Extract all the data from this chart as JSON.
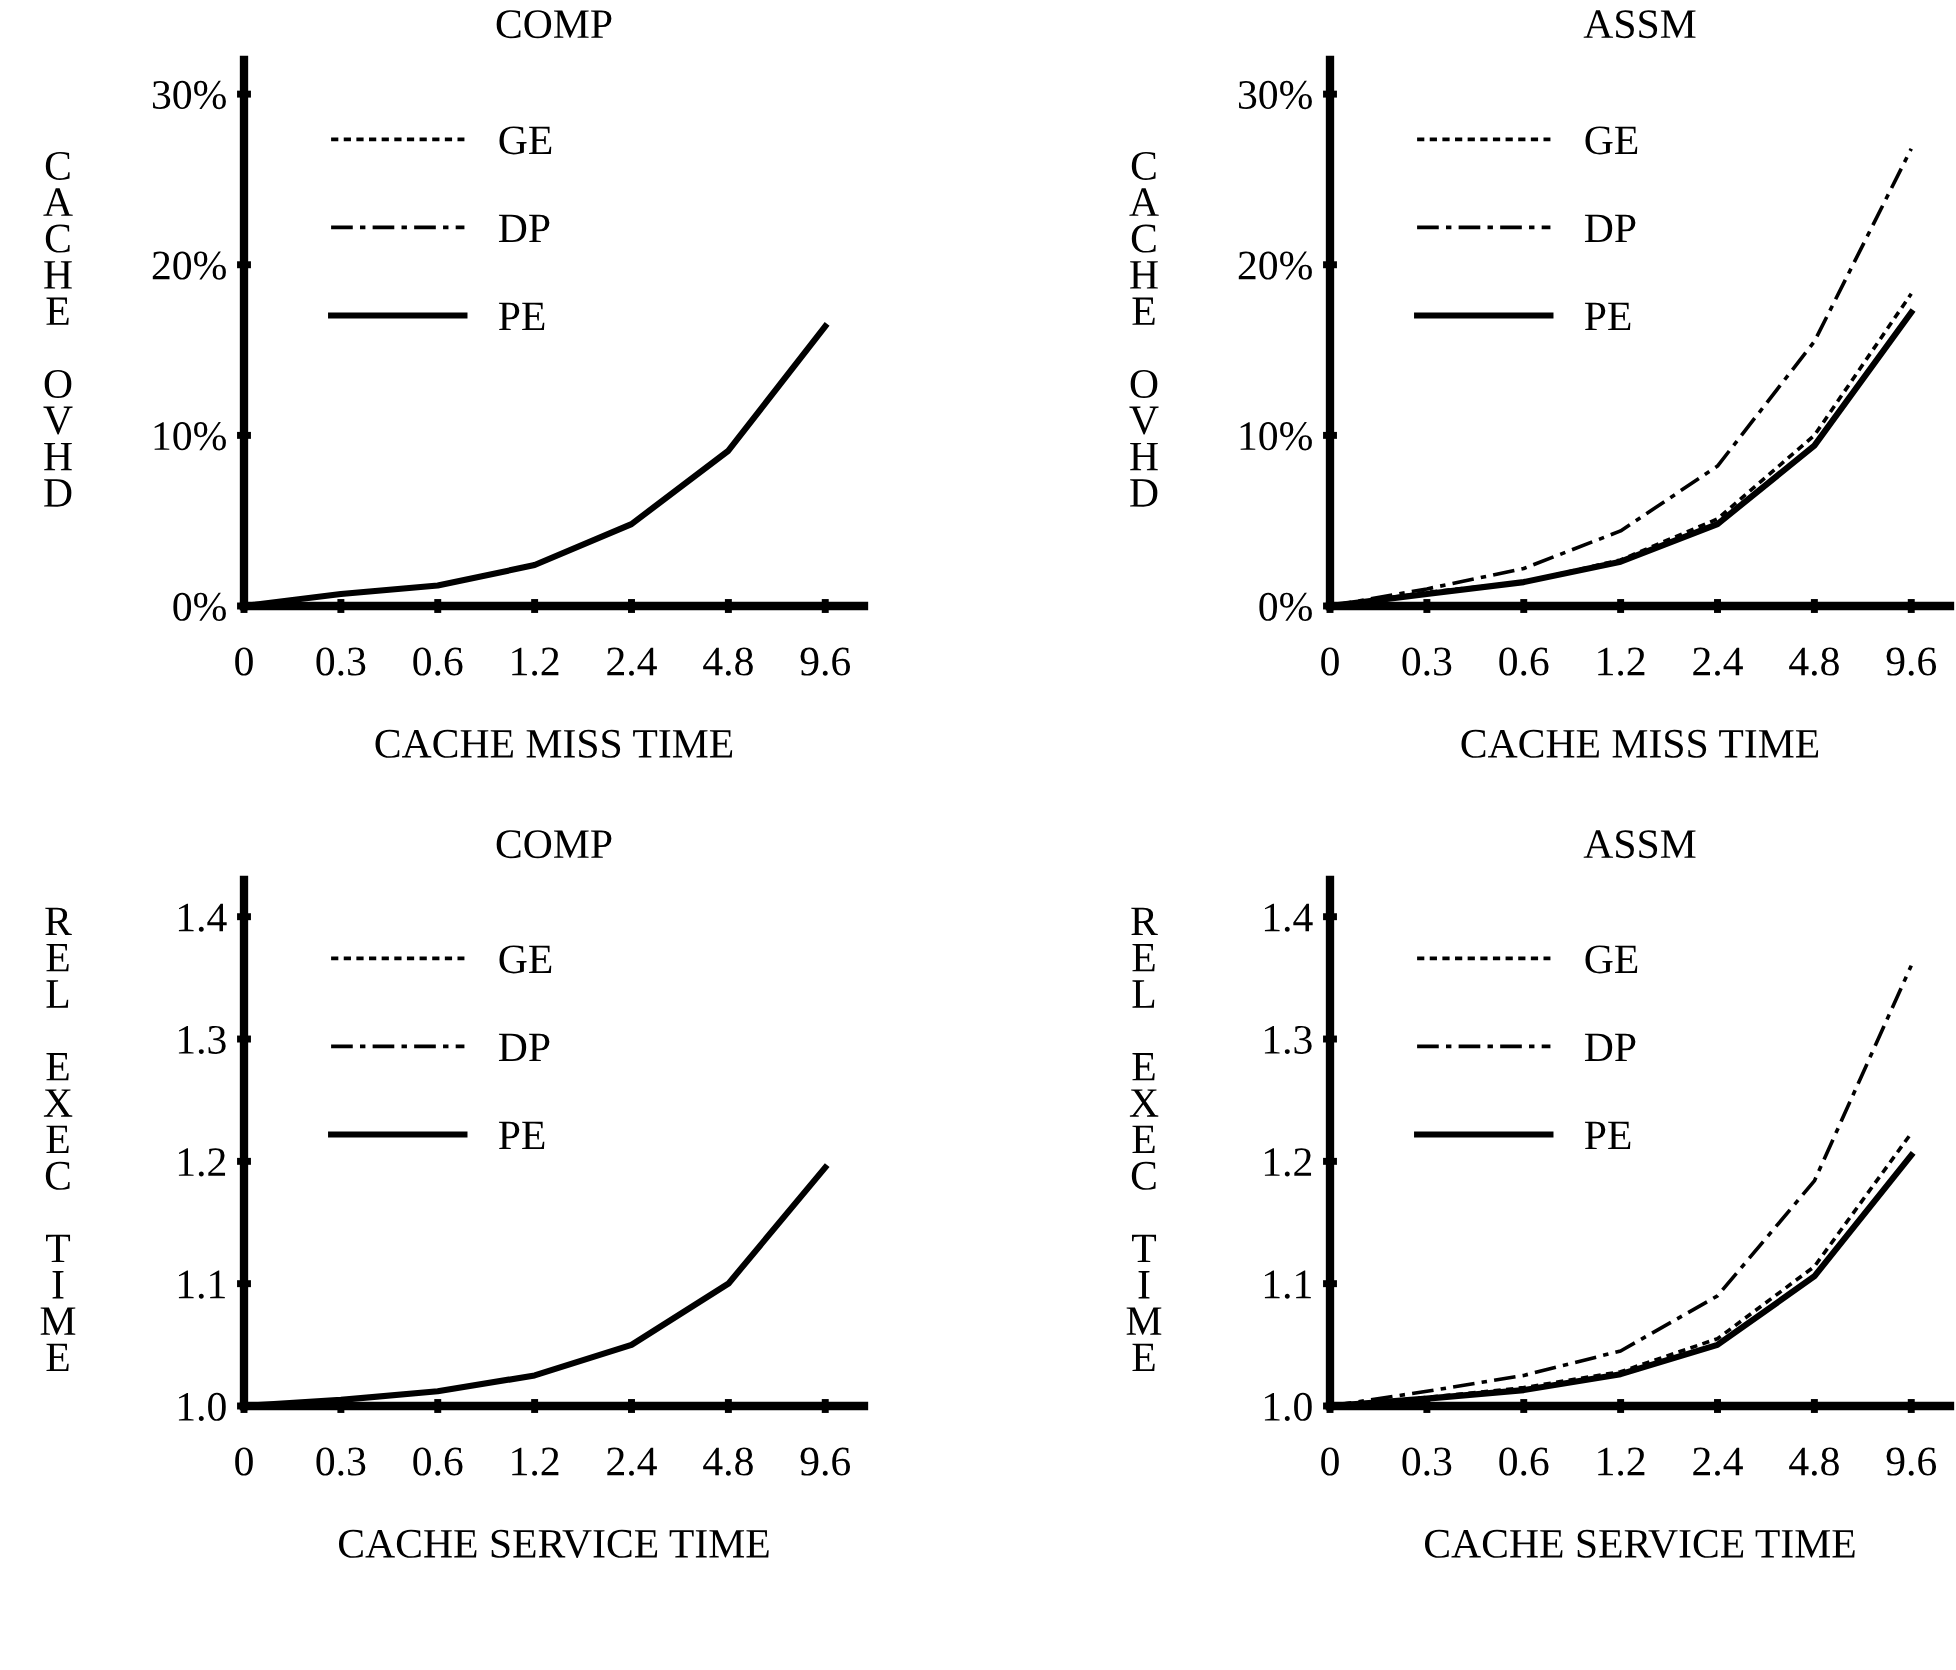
{
  "chart_data": [
    {
      "type": "line",
      "title": "COMP",
      "xlabel": "CACHE MISS TIME",
      "ylabel": "CACHE OVHD",
      "categories": [
        "0",
        "0.3",
        "0.6",
        "1.2",
        "2.4",
        "4.8",
        "9.6"
      ],
      "ylim": [
        0,
        32
      ],
      "yticks": [
        {
          "value": 0,
          "label": "0%"
        },
        {
          "value": 10,
          "label": "10%"
        },
        {
          "value": 20,
          "label": "20%"
        },
        {
          "value": 30,
          "label": "30%"
        }
      ],
      "grid": false,
      "legend": "top left",
      "series": [
        {
          "name": "GE",
          "color": "#000000",
          "line_style": "dotted",
          "values": [
            null,
            null,
            null,
            null,
            null,
            null,
            null
          ]
        },
        {
          "name": "DP",
          "color": "#000000",
          "line_style": "dashdot",
          "values": [
            null,
            null,
            null,
            null,
            null,
            null,
            null
          ]
        },
        {
          "name": "PE",
          "color": "#000000",
          "line_style": "solid",
          "values": [
            0,
            0.7,
            1.2,
            2.4,
            4.8,
            9.1,
            16.4
          ]
        }
      ]
    },
    {
      "type": "line",
      "title": "ASSM",
      "xlabel": "CACHE MISS TIME",
      "ylabel": "CACHE OVHD",
      "categories": [
        "0",
        "0.3",
        "0.6",
        "1.2",
        "2.4",
        "4.8",
        "9.6"
      ],
      "ylim": [
        0,
        32
      ],
      "yticks": [
        {
          "value": 0,
          "label": "0%"
        },
        {
          "value": 10,
          "label": "10%"
        },
        {
          "value": 20,
          "label": "20%"
        },
        {
          "value": 30,
          "label": "30%"
        }
      ],
      "grid": false,
      "legend": "top left",
      "series": [
        {
          "name": "GE",
          "color": "#000000",
          "line_style": "dotted",
          "values": [
            0,
            0.8,
            1.4,
            2.7,
            5.1,
            10.0,
            18.3
          ]
        },
        {
          "name": "DP",
          "color": "#000000",
          "line_style": "dashdot",
          "values": [
            0,
            1.0,
            2.2,
            4.4,
            8.2,
            15.5,
            26.8
          ]
        },
        {
          "name": "PE",
          "color": "#000000",
          "line_style": "solid",
          "values": [
            0,
            0.7,
            1.4,
            2.6,
            4.8,
            9.4,
            17.2
          ]
        }
      ]
    },
    {
      "type": "line",
      "title": "COMP",
      "xlabel": "CACHE SERVICE TIME",
      "ylabel": "REL EXEC TIME",
      "categories": [
        "0",
        "0.3",
        "0.6",
        "1.2",
        "2.4",
        "4.8",
        "9.6"
      ],
      "ylim": [
        1.0,
        1.43
      ],
      "yticks": [
        {
          "value": 1.0,
          "label": "1.0"
        },
        {
          "value": 1.1,
          "label": "1.1"
        },
        {
          "value": 1.2,
          "label": "1.2"
        },
        {
          "value": 1.3,
          "label": "1.3"
        },
        {
          "value": 1.4,
          "label": "1.4"
        }
      ],
      "grid": false,
      "legend": "top left",
      "series": [
        {
          "name": "GE",
          "color": "#000000",
          "line_style": "dotted",
          "values": [
            null,
            null,
            null,
            null,
            null,
            null,
            null
          ]
        },
        {
          "name": "DP",
          "color": "#000000",
          "line_style": "dashdot",
          "values": [
            null,
            null,
            null,
            null,
            null,
            null,
            null
          ]
        },
        {
          "name": "PE",
          "color": "#000000",
          "line_style": "solid",
          "values": [
            1.0,
            1.005,
            1.012,
            1.025,
            1.05,
            1.1,
            1.195
          ]
        }
      ]
    },
    {
      "type": "line",
      "title": "ASSM",
      "xlabel": "CACHE SERVICE TIME",
      "ylabel": "REL EXEC TIME",
      "categories": [
        "0",
        "0.3",
        "0.6",
        "1.2",
        "2.4",
        "4.8",
        "9.6"
      ],
      "ylim": [
        1.0,
        1.43
      ],
      "yticks": [
        {
          "value": 1.0,
          "label": "1.0"
        },
        {
          "value": 1.1,
          "label": "1.1"
        },
        {
          "value": 1.2,
          "label": "1.2"
        },
        {
          "value": 1.3,
          "label": "1.3"
        },
        {
          "value": 1.4,
          "label": "1.4"
        }
      ],
      "grid": false,
      "legend": "top left",
      "series": [
        {
          "name": "GE",
          "color": "#000000",
          "line_style": "dotted",
          "values": [
            1.0,
            1.007,
            1.015,
            1.028,
            1.055,
            1.114,
            1.223
          ]
        },
        {
          "name": "DP",
          "color": "#000000",
          "line_style": "dashdot",
          "values": [
            1.0,
            1.012,
            1.025,
            1.045,
            1.09,
            1.184,
            1.36
          ]
        },
        {
          "name": "PE",
          "color": "#000000",
          "line_style": "solid",
          "values": [
            1.0,
            1.006,
            1.013,
            1.026,
            1.05,
            1.106,
            1.205
          ]
        }
      ]
    }
  ]
}
